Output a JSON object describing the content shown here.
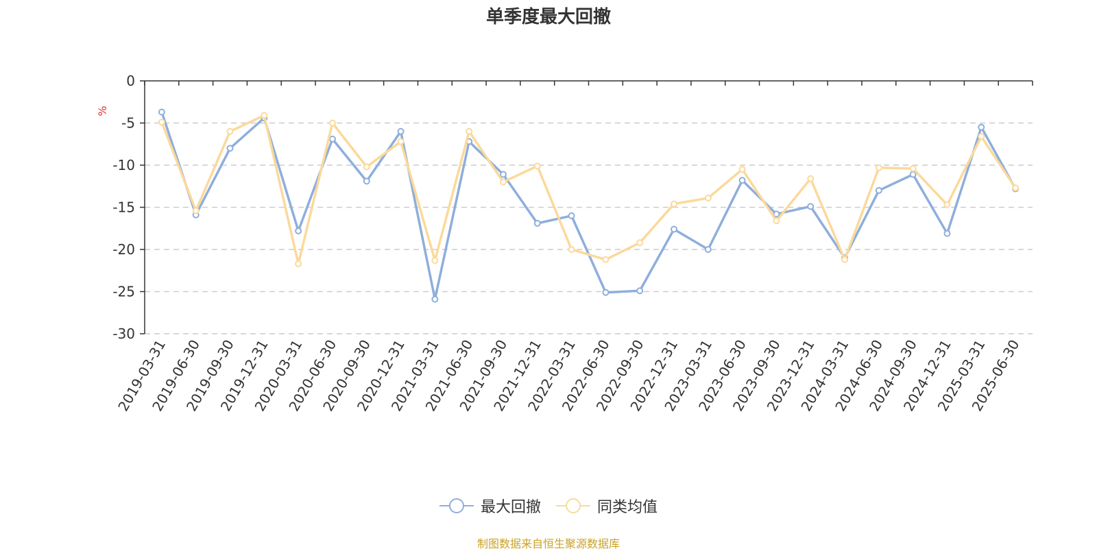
{
  "chart_data": {
    "type": "line",
    "title": "单季度最大回撤",
    "ylabel": "%",
    "ylim": [
      -30,
      0
    ],
    "yticks": [
      0,
      -5,
      -10,
      -15,
      -20,
      -25,
      -30
    ],
    "grid": "horizontal-dashed",
    "legend_placement": "bottom-center",
    "categories": [
      "2019-03-31",
      "2019-06-30",
      "2019-09-30",
      "2019-12-31",
      "2020-03-31",
      "2020-06-30",
      "2020-09-30",
      "2020-12-31",
      "2021-03-31",
      "2021-06-30",
      "2021-09-30",
      "2021-12-31",
      "2022-03-31",
      "2022-06-30",
      "2022-09-30",
      "2022-12-31",
      "2023-03-31",
      "2023-06-30",
      "2023-09-30",
      "2023-12-31",
      "2024-03-31",
      "2024-06-30",
      "2024-09-30",
      "2024-12-31",
      "2025-03-31",
      "2025-06-30"
    ],
    "series": [
      {
        "name": "最大回撤",
        "color": "#8eaedc",
        "values": [
          -3.7,
          -15.9,
          -8.0,
          -4.4,
          -17.8,
          -6.9,
          -11.9,
          -6.0,
          -25.9,
          -7.2,
          -11.1,
          -16.9,
          -16.0,
          -25.1,
          -24.9,
          -17.6,
          -20.0,
          -11.8,
          -15.8,
          -14.9,
          -21.0,
          -13.0,
          -11.1,
          -18.1,
          -5.5,
          -12.8
        ]
      },
      {
        "name": "同类均值",
        "color": "#fbd99b",
        "values": [
          -4.9,
          -15.4,
          -6.0,
          -4.1,
          -21.7,
          -5.0,
          -10.2,
          -7.2,
          -21.3,
          -6.0,
          -12.0,
          -10.1,
          -20.0,
          -21.2,
          -19.2,
          -14.6,
          -13.9,
          -10.5,
          -16.6,
          -11.6,
          -21.2,
          -10.3,
          -10.4,
          -14.7,
          -6.6,
          -12.7
        ]
      }
    ]
  },
  "footer": {
    "source": "制图数据来自恒生聚源数据库"
  }
}
